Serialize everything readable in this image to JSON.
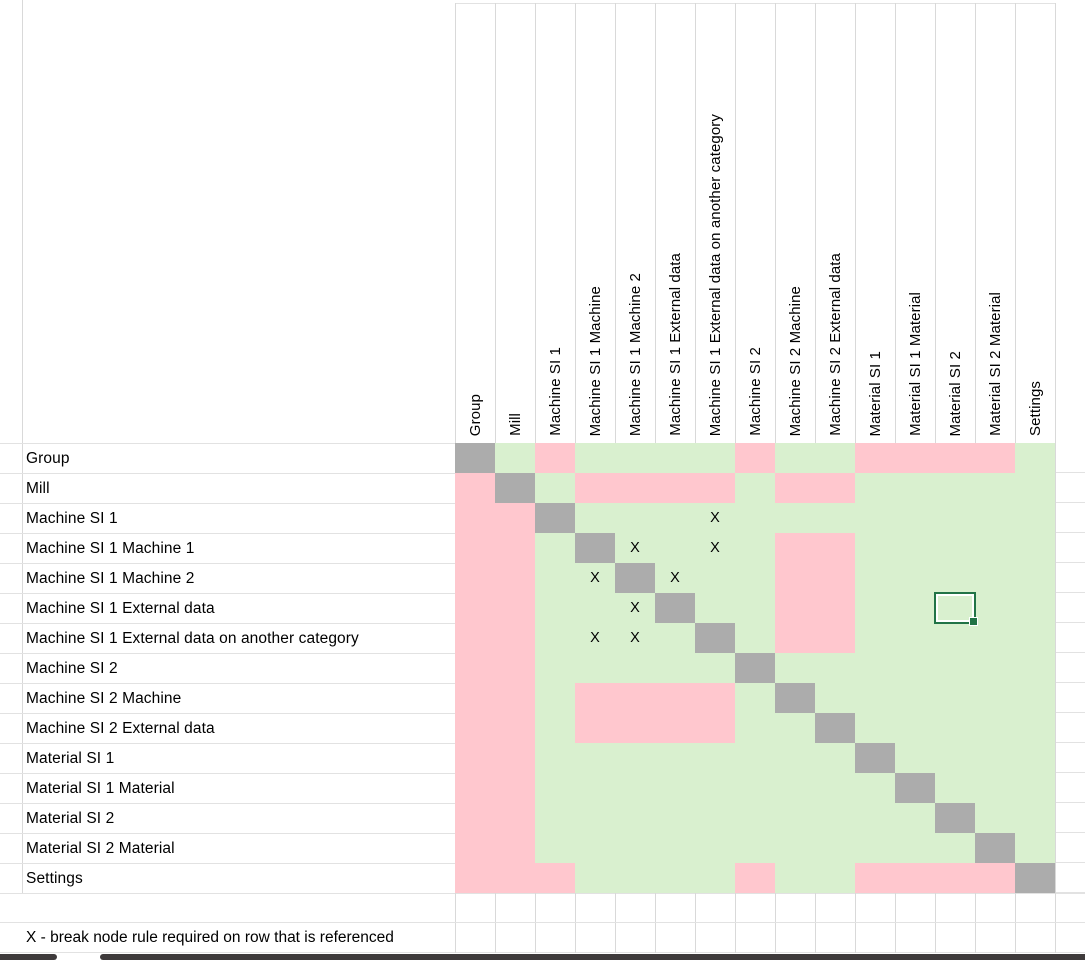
{
  "sheet": {
    "columns": [
      "Group",
      "Mill",
      "Machine SI 1",
      "Machine SI 1 Machine",
      "Machine SI 1 Machine 2",
      "Machine SI 1 External data",
      "Machine SI 1 External data on another category",
      "Machine SI 2",
      "Machine SI 2 Machine",
      "Machine SI 2 External data",
      "Material SI 1",
      "Material SI 1 Material",
      "Material SI 2",
      "Material SI 2 Material",
      "Settings"
    ],
    "rows": [
      "Group",
      "Mill",
      "Machine SI 1",
      "Machine SI 1 Machine 1",
      "Machine SI 1 Machine 2",
      "Machine SI 1 External data",
      "Machine SI 1 External data on another category",
      "Machine SI 2",
      "Machine SI 2 Machine",
      "Machine SI 2 External data",
      "Material SI 1",
      "Material SI 1 Material",
      "Material SI 2",
      "Material SI 2 Material",
      "Settings"
    ],
    "matrix": [
      [
        "d",
        "g",
        "p",
        "g",
        "g",
        "g",
        "g",
        "p",
        "g",
        "g",
        "p",
        "p",
        "p",
        "p",
        "g"
      ],
      [
        "p",
        "d",
        "g",
        "p",
        "p",
        "p",
        "p",
        "g",
        "p",
        "p",
        "g",
        "g",
        "g",
        "g",
        "g"
      ],
      [
        "p",
        "p",
        "d",
        "g",
        "g",
        "g",
        "x",
        "g",
        "g",
        "g",
        "g",
        "g",
        "g",
        "g",
        "g"
      ],
      [
        "p",
        "p",
        "g",
        "d",
        "x",
        "g",
        "x",
        "g",
        "p",
        "p",
        "g",
        "g",
        "g",
        "g",
        "g"
      ],
      [
        "p",
        "p",
        "g",
        "x",
        "d",
        "x",
        "g",
        "g",
        "p",
        "p",
        "g",
        "g",
        "g",
        "g",
        "g"
      ],
      [
        "p",
        "p",
        "g",
        "g",
        "x",
        "d",
        "g",
        "g",
        "p",
        "p",
        "g",
        "g",
        "g",
        "g",
        "g"
      ],
      [
        "p",
        "p",
        "g",
        "x",
        "x",
        "g",
        "d",
        "g",
        "p",
        "p",
        "g",
        "g",
        "g",
        "g",
        "g"
      ],
      [
        "p",
        "p",
        "g",
        "g",
        "g",
        "g",
        "g",
        "d",
        "g",
        "g",
        "g",
        "g",
        "g",
        "g",
        "g"
      ],
      [
        "p",
        "p",
        "g",
        "p",
        "p",
        "p",
        "p",
        "g",
        "d",
        "g",
        "g",
        "g",
        "g",
        "g",
        "g"
      ],
      [
        "p",
        "p",
        "g",
        "p",
        "p",
        "p",
        "p",
        "g",
        "g",
        "d",
        "g",
        "g",
        "g",
        "g",
        "g"
      ],
      [
        "p",
        "p",
        "g",
        "g",
        "g",
        "g",
        "g",
        "g",
        "g",
        "g",
        "d",
        "g",
        "g",
        "g",
        "g"
      ],
      [
        "p",
        "p",
        "g",
        "g",
        "g",
        "g",
        "g",
        "g",
        "g",
        "g",
        "g",
        "d",
        "g",
        "g",
        "g"
      ],
      [
        "p",
        "p",
        "g",
        "g",
        "g",
        "g",
        "g",
        "g",
        "g",
        "g",
        "g",
        "g",
        "d",
        "g",
        "g"
      ],
      [
        "p",
        "p",
        "g",
        "g",
        "g",
        "g",
        "g",
        "g",
        "g",
        "g",
        "g",
        "g",
        "g",
        "d",
        "g"
      ],
      [
        "p",
        "p",
        "p",
        "g",
        "g",
        "g",
        "g",
        "p",
        "g",
        "g",
        "p",
        "p",
        "p",
        "p",
        "d"
      ]
    ],
    "x_marker": "X",
    "note": "X - break node rule required on row that is referenced",
    "selection": {
      "row": 6,
      "col": 13
    },
    "colors": {
      "green": "#D9F0CF",
      "pink": "#FFC7CE",
      "diagonal_gray": "#ACACAC",
      "selection_green": "#217346",
      "gridline_vertical": "#D9D9D9",
      "gridline_horizontal": "#E2E2E2",
      "scrollbar_dark": "#3E3A3B"
    }
  }
}
